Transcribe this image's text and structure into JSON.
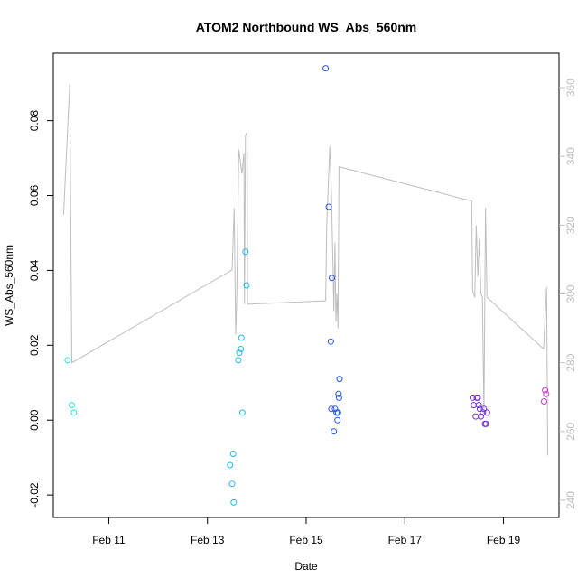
{
  "chart_data": {
    "type": "scatter",
    "title": "ATOM2 Northbound WS_Abs_560nm",
    "xlabel": "Date",
    "ylabel": "WS_Abs_560nm",
    "xlim": [
      "2016-02-09T21:00",
      "2016-02-20T03:00"
    ],
    "ylim": [
      -0.026,
      0.098
    ],
    "x_ticks": [
      {
        "label": "Feb 11",
        "value": "2016-02-11T00:00"
      },
      {
        "label": "Feb 13",
        "value": "2016-02-13T00:00"
      },
      {
        "label": "Feb 15",
        "value": "2016-02-15T00:00"
      },
      {
        "label": "Feb 17",
        "value": "2016-02-17T00:00"
      },
      {
        "label": "Feb 19",
        "value": "2016-02-19T00:00"
      }
    ],
    "y_ticks": [
      {
        "label": "-0.02",
        "value": -0.02
      },
      {
        "label": "0.00",
        "value": 0.0
      },
      {
        "label": "0.02",
        "value": 0.02
      },
      {
        "label": "0.04",
        "value": 0.04
      },
      {
        "label": "0.06",
        "value": 0.06
      },
      {
        "label": "0.08",
        "value": 0.08
      }
    ],
    "y2_ticks": [
      {
        "label": "240",
        "value": 240
      },
      {
        "label": "260",
        "value": 260
      },
      {
        "label": "280",
        "value": 280
      },
      {
        "label": "300",
        "value": 300
      },
      {
        "label": "320",
        "value": 320
      },
      {
        "label": "340",
        "value": 340
      },
      {
        "label": "360",
        "value": 360
      }
    ],
    "y2lim": [
      235,
      370
    ],
    "grid": false,
    "legend": "none",
    "colors": {
      "line": "#bebebe",
      "axis": "#000000",
      "right_axis": "#bebebe"
    },
    "points": [
      {
        "x": "2016-02-10T04:00",
        "y": 0.016,
        "color": "#33dddd"
      },
      {
        "x": "2016-02-10T06:00",
        "y": 0.004,
        "color": "#33dddd"
      },
      {
        "x": "2016-02-10T07:00",
        "y": 0.002,
        "color": "#33dddd"
      },
      {
        "x": "2016-02-13T11:00",
        "y": -0.012,
        "color": "#22bbee"
      },
      {
        "x": "2016-02-13T12:00",
        "y": -0.017,
        "color": "#22bbee"
      },
      {
        "x": "2016-02-13T12:30",
        "y": -0.009,
        "color": "#22bbee"
      },
      {
        "x": "2016-02-13T12:45",
        "y": -0.022,
        "color": "#22bbee"
      },
      {
        "x": "2016-02-13T15:00",
        "y": 0.016,
        "color": "#22bbee"
      },
      {
        "x": "2016-02-13T15:30",
        "y": 0.018,
        "color": "#22bbee"
      },
      {
        "x": "2016-02-13T16:15",
        "y": 0.019,
        "color": "#22bbee"
      },
      {
        "x": "2016-02-13T16:30",
        "y": 0.022,
        "color": "#22bbee"
      },
      {
        "x": "2016-02-13T17:00",
        "y": 0.002,
        "color": "#22bbee"
      },
      {
        "x": "2016-02-13T18:30",
        "y": 0.045,
        "color": "#22bbee"
      },
      {
        "x": "2016-02-13T19:00",
        "y": 0.036,
        "color": "#22bbee"
      },
      {
        "x": "2016-02-15T09:30",
        "y": 0.094,
        "color": "#2255ee"
      },
      {
        "x": "2016-02-15T11:00",
        "y": 0.057,
        "color": "#2255ee"
      },
      {
        "x": "2016-02-15T12:00",
        "y": 0.021,
        "color": "#2255ee"
      },
      {
        "x": "2016-02-15T12:30",
        "y": 0.038,
        "color": "#2255ee"
      },
      {
        "x": "2016-02-15T12:15",
        "y": 0.003,
        "color": "#2255ee"
      },
      {
        "x": "2016-02-15T13:30",
        "y": -0.003,
        "color": "#2255ee"
      },
      {
        "x": "2016-02-15T14:00",
        "y": 0.003,
        "color": "#2255ee"
      },
      {
        "x": "2016-02-15T14:45",
        "y": 0.002,
        "color": "#2255ee"
      },
      {
        "x": "2016-02-15T15:15",
        "y": 0.0,
        "color": "#2255ee"
      },
      {
        "x": "2016-02-15T15:30",
        "y": 0.002,
        "color": "#2255ee"
      },
      {
        "x": "2016-02-15T15:45",
        "y": 0.007,
        "color": "#2255ee"
      },
      {
        "x": "2016-02-15T16:00",
        "y": 0.006,
        "color": "#2255ee"
      },
      {
        "x": "2016-02-15T16:15",
        "y": 0.011,
        "color": "#2255ee"
      },
      {
        "x": "2016-02-18T09:00",
        "y": 0.006,
        "color": "#7733dd"
      },
      {
        "x": "2016-02-18T09:30",
        "y": 0.004,
        "color": "#7733dd"
      },
      {
        "x": "2016-02-18T10:30",
        "y": 0.001,
        "color": "#7733dd"
      },
      {
        "x": "2016-02-18T11:00",
        "y": 0.006,
        "color": "#7733dd"
      },
      {
        "x": "2016-02-18T11:30",
        "y": 0.006,
        "color": "#7733dd"
      },
      {
        "x": "2016-02-18T12:00",
        "y": 0.004,
        "color": "#7733dd"
      },
      {
        "x": "2016-02-18T12:30",
        "y": 0.003,
        "color": "#7733dd"
      },
      {
        "x": "2016-02-18T13:00",
        "y": 0.001,
        "color": "#7733dd"
      },
      {
        "x": "2016-02-18T14:00",
        "y": 0.002,
        "color": "#7733dd"
      },
      {
        "x": "2016-02-18T14:30",
        "y": 0.003,
        "color": "#7733dd"
      },
      {
        "x": "2016-02-18T15:00",
        "y": -0.001,
        "color": "#7733dd"
      },
      {
        "x": "2016-02-18T15:30",
        "y": -0.001,
        "color": "#7733dd"
      },
      {
        "x": "2016-02-18T16:00",
        "y": 0.002,
        "color": "#7733dd"
      },
      {
        "x": "2016-02-19T19:45",
        "y": 0.005,
        "color": "#dd33dd"
      },
      {
        "x": "2016-02-19T20:15",
        "y": 0.008,
        "color": "#dd33dd"
      },
      {
        "x": "2016-02-19T20:45",
        "y": 0.007,
        "color": "#dd33dd"
      }
    ],
    "line_series": [
      {
        "x": "2016-02-10T02:00",
        "y": 323
      },
      {
        "x": "2016-02-10T05:00",
        "y": 361
      },
      {
        "x": "2016-02-10T06:00",
        "y": 280
      },
      {
        "x": "2016-02-13T12:00",
        "y": 307
      },
      {
        "x": "2016-02-13T13:00",
        "y": 325
      },
      {
        "x": "2016-02-13T13:45",
        "y": 288
      },
      {
        "x": "2016-02-13T14:15",
        "y": 300
      },
      {
        "x": "2016-02-13T15:15",
        "y": 342
      },
      {
        "x": "2016-02-13T16:45",
        "y": 335
      },
      {
        "x": "2016-02-13T17:45",
        "y": 341
      },
      {
        "x": "2016-02-13T18:00",
        "y": 297
      },
      {
        "x": "2016-02-13T18:30",
        "y": 346
      },
      {
        "x": "2016-02-13T19:15",
        "y": 347
      },
      {
        "x": "2016-02-13T19:30",
        "y": 297
      },
      {
        "x": "2016-02-15T09:00",
        "y": 298
      },
      {
        "x": "2016-02-15T09:30",
        "y": 298
      },
      {
        "x": "2016-02-15T10:00",
        "y": 320
      },
      {
        "x": "2016-02-15T11:30",
        "y": 343
      },
      {
        "x": "2016-02-15T12:15",
        "y": 330
      },
      {
        "x": "2016-02-15T13:00",
        "y": 310
      },
      {
        "x": "2016-02-15T13:30",
        "y": 295
      },
      {
        "x": "2016-02-15T14:00",
        "y": 315
      },
      {
        "x": "2016-02-15T14:30",
        "y": 292
      },
      {
        "x": "2016-02-15T15:00",
        "y": 300
      },
      {
        "x": "2016-02-15T15:30",
        "y": 290
      },
      {
        "x": "2016-02-15T16:00",
        "y": 337
      },
      {
        "x": "2016-02-18T08:30",
        "y": 327
      },
      {
        "x": "2016-02-18T09:00",
        "y": 301
      },
      {
        "x": "2016-02-18T10:00",
        "y": 299
      },
      {
        "x": "2016-02-18T10:45",
        "y": 320
      },
      {
        "x": "2016-02-18T11:30",
        "y": 305
      },
      {
        "x": "2016-02-18T12:15",
        "y": 316
      },
      {
        "x": "2016-02-18T13:00",
        "y": 300
      },
      {
        "x": "2016-02-18T13:45",
        "y": 299
      },
      {
        "x": "2016-02-18T14:30",
        "y": 265
      },
      {
        "x": "2016-02-18T15:15",
        "y": 325
      },
      {
        "x": "2016-02-18T16:00",
        "y": 299
      },
      {
        "x": "2016-02-19T19:30",
        "y": 284
      },
      {
        "x": "2016-02-19T21:00",
        "y": 302
      },
      {
        "x": "2016-02-19T21:30",
        "y": 253
      }
    ]
  }
}
